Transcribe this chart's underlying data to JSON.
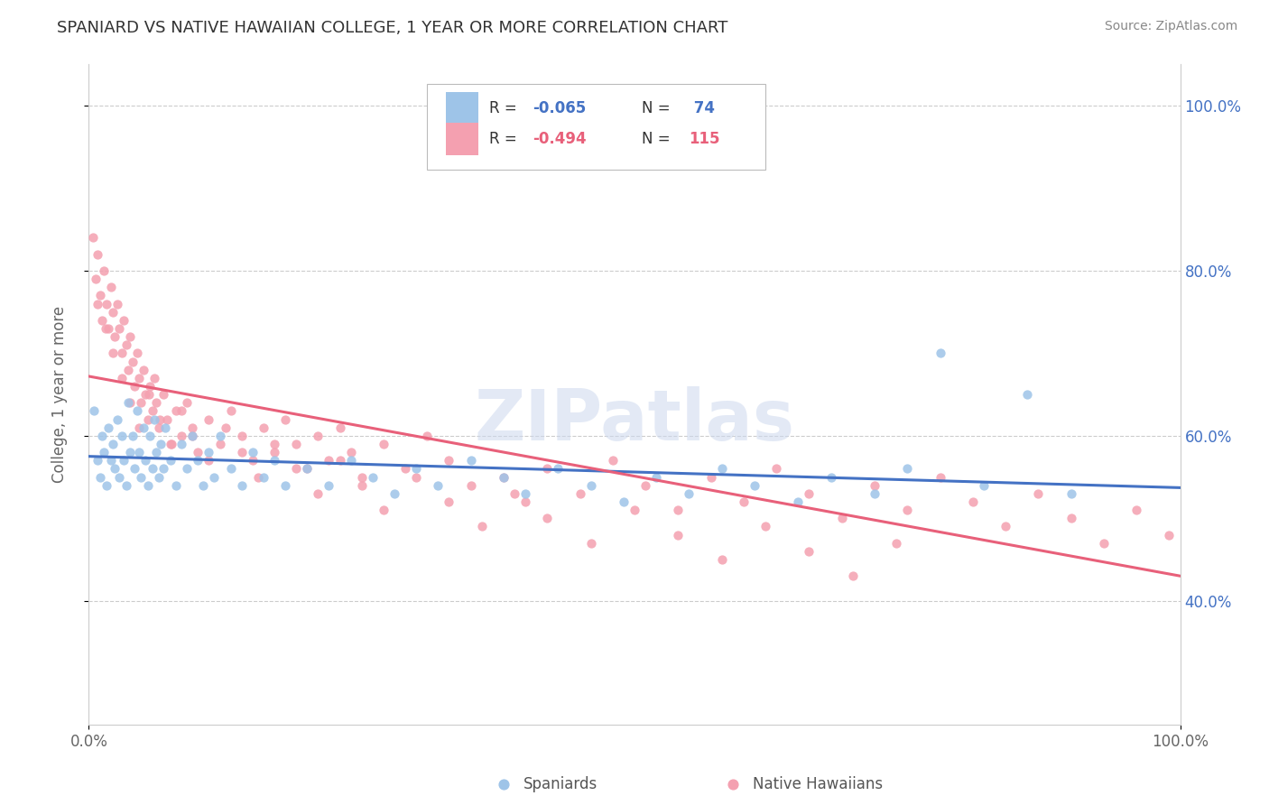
{
  "title": "SPANIARD VS NATIVE HAWAIIAN COLLEGE, 1 YEAR OR MORE CORRELATION CHART",
  "source": "Source: ZipAtlas.com",
  "ylabel": "College, 1 year or more",
  "xlim": [
    0,
    1
  ],
  "ylim": [
    0.25,
    1.05
  ],
  "x_tick_labels": [
    "0.0%",
    "100.0%"
  ],
  "y_tick_values": [
    0.4,
    0.6,
    0.8,
    1.0
  ],
  "y_tick_labels": [
    "40.0%",
    "60.0%",
    "80.0%",
    "100.0%"
  ],
  "spaniard_color": "#9ec4e8",
  "native_hawaiian_color": "#f4a0b0",
  "trend_spaniard_color": "#4472c4",
  "trend_native_hawaiian_color": "#e8607a",
  "watermark": "ZIPatlas",
  "background_color": "#ffffff",
  "grid_color": "#cccccc",
  "spaniard_x": [
    0.005,
    0.008,
    0.01,
    0.012,
    0.014,
    0.016,
    0.018,
    0.02,
    0.022,
    0.024,
    0.026,
    0.028,
    0.03,
    0.032,
    0.034,
    0.036,
    0.038,
    0.04,
    0.042,
    0.044,
    0.046,
    0.048,
    0.05,
    0.052,
    0.054,
    0.056,
    0.058,
    0.06,
    0.062,
    0.064,
    0.066,
    0.068,
    0.07,
    0.075,
    0.08,
    0.085,
    0.09,
    0.095,
    0.1,
    0.105,
    0.11,
    0.115,
    0.12,
    0.13,
    0.14,
    0.15,
    0.16,
    0.17,
    0.18,
    0.2,
    0.22,
    0.24,
    0.26,
    0.28,
    0.3,
    0.32,
    0.35,
    0.38,
    0.4,
    0.43,
    0.46,
    0.49,
    0.52,
    0.55,
    0.58,
    0.61,
    0.65,
    0.68,
    0.72,
    0.75,
    0.78,
    0.82,
    0.86,
    0.9
  ],
  "spaniard_y": [
    0.63,
    0.57,
    0.55,
    0.6,
    0.58,
    0.54,
    0.61,
    0.57,
    0.59,
    0.56,
    0.62,
    0.55,
    0.6,
    0.57,
    0.54,
    0.64,
    0.58,
    0.6,
    0.56,
    0.63,
    0.58,
    0.55,
    0.61,
    0.57,
    0.54,
    0.6,
    0.56,
    0.62,
    0.58,
    0.55,
    0.59,
    0.56,
    0.61,
    0.57,
    0.54,
    0.59,
    0.56,
    0.6,
    0.57,
    0.54,
    0.58,
    0.55,
    0.6,
    0.56,
    0.54,
    0.58,
    0.55,
    0.57,
    0.54,
    0.56,
    0.54,
    0.57,
    0.55,
    0.53,
    0.56,
    0.54,
    0.57,
    0.55,
    0.53,
    0.56,
    0.54,
    0.52,
    0.55,
    0.53,
    0.56,
    0.54,
    0.52,
    0.55,
    0.53,
    0.56,
    0.7,
    0.54,
    0.65,
    0.53
  ],
  "native_hawaiian_x": [
    0.004,
    0.006,
    0.008,
    0.01,
    0.012,
    0.014,
    0.016,
    0.018,
    0.02,
    0.022,
    0.024,
    0.026,
    0.028,
    0.03,
    0.032,
    0.034,
    0.036,
    0.038,
    0.04,
    0.042,
    0.044,
    0.046,
    0.048,
    0.05,
    0.052,
    0.054,
    0.056,
    0.058,
    0.06,
    0.062,
    0.064,
    0.068,
    0.072,
    0.076,
    0.08,
    0.085,
    0.09,
    0.095,
    0.1,
    0.11,
    0.12,
    0.13,
    0.14,
    0.15,
    0.16,
    0.17,
    0.18,
    0.19,
    0.2,
    0.21,
    0.22,
    0.23,
    0.24,
    0.25,
    0.27,
    0.29,
    0.31,
    0.33,
    0.35,
    0.38,
    0.4,
    0.42,
    0.45,
    0.48,
    0.51,
    0.54,
    0.57,
    0.6,
    0.63,
    0.66,
    0.69,
    0.72,
    0.75,
    0.78,
    0.81,
    0.84,
    0.87,
    0.9,
    0.93,
    0.96,
    0.99,
    0.008,
    0.015,
    0.022,
    0.03,
    0.038,
    0.046,
    0.055,
    0.065,
    0.075,
    0.085,
    0.095,
    0.11,
    0.125,
    0.14,
    0.155,
    0.17,
    0.19,
    0.21,
    0.23,
    0.25,
    0.27,
    0.3,
    0.33,
    0.36,
    0.39,
    0.42,
    0.46,
    0.5,
    0.54,
    0.58,
    0.62,
    0.66,
    0.7,
    0.74
  ],
  "native_hawaiian_y": [
    0.84,
    0.79,
    0.82,
    0.77,
    0.74,
    0.8,
    0.76,
    0.73,
    0.78,
    0.75,
    0.72,
    0.76,
    0.73,
    0.7,
    0.74,
    0.71,
    0.68,
    0.72,
    0.69,
    0.66,
    0.7,
    0.67,
    0.64,
    0.68,
    0.65,
    0.62,
    0.66,
    0.63,
    0.67,
    0.64,
    0.61,
    0.65,
    0.62,
    0.59,
    0.63,
    0.6,
    0.64,
    0.61,
    0.58,
    0.62,
    0.59,
    0.63,
    0.6,
    0.57,
    0.61,
    0.58,
    0.62,
    0.59,
    0.56,
    0.6,
    0.57,
    0.61,
    0.58,
    0.55,
    0.59,
    0.56,
    0.6,
    0.57,
    0.54,
    0.55,
    0.52,
    0.56,
    0.53,
    0.57,
    0.54,
    0.51,
    0.55,
    0.52,
    0.56,
    0.53,
    0.5,
    0.54,
    0.51,
    0.55,
    0.52,
    0.49,
    0.53,
    0.5,
    0.47,
    0.51,
    0.48,
    0.76,
    0.73,
    0.7,
    0.67,
    0.64,
    0.61,
    0.65,
    0.62,
    0.59,
    0.63,
    0.6,
    0.57,
    0.61,
    0.58,
    0.55,
    0.59,
    0.56,
    0.53,
    0.57,
    0.54,
    0.51,
    0.55,
    0.52,
    0.49,
    0.53,
    0.5,
    0.47,
    0.51,
    0.48,
    0.45,
    0.49,
    0.46,
    0.43,
    0.47
  ],
  "sp_trend_x0": 0.0,
  "sp_trend_x1": 1.0,
  "sp_trend_y0": 0.575,
  "sp_trend_y1": 0.537,
  "nh_trend_x0": 0.0,
  "nh_trend_x1": 1.0,
  "nh_trend_y0": 0.672,
  "nh_trend_y1": 0.43
}
